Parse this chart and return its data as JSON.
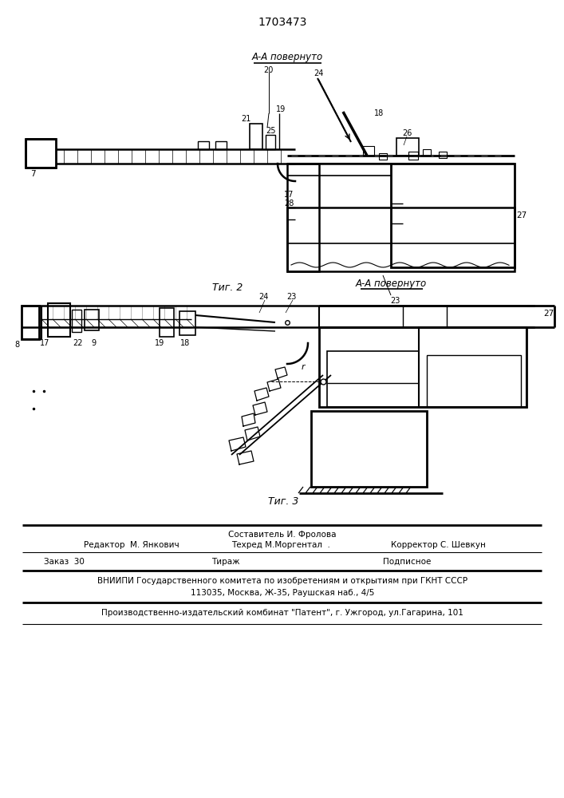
{
  "patent_number": "1703473",
  "fig2_label": "Τиг. 2",
  "fig3_label": "Τиг. 3",
  "section_label": "A-A повернуто",
  "bg_color": "#ffffff",
  "footer": {
    "sostavitel": "Составитель И. Фролова",
    "editor": "Редактор  М. Янкович",
    "techred": "Техред М.Моргентал  .",
    "corrector": "Корректор С. Шевкун",
    "order": "Заказ  30",
    "tirazh": "Тираж",
    "podpisnoe": "Подписное",
    "vniipи": "ВНИИПИ Государственного комитета по изобретениям и открытиям при ГКНТ СССР",
    "address": "113035, Москва, Ж-35, Раушская наб., 4/5",
    "publisher": "Производственно-издательский комбинат \"Патент\", г. Ужгород, ул.Гагарина, 101"
  }
}
